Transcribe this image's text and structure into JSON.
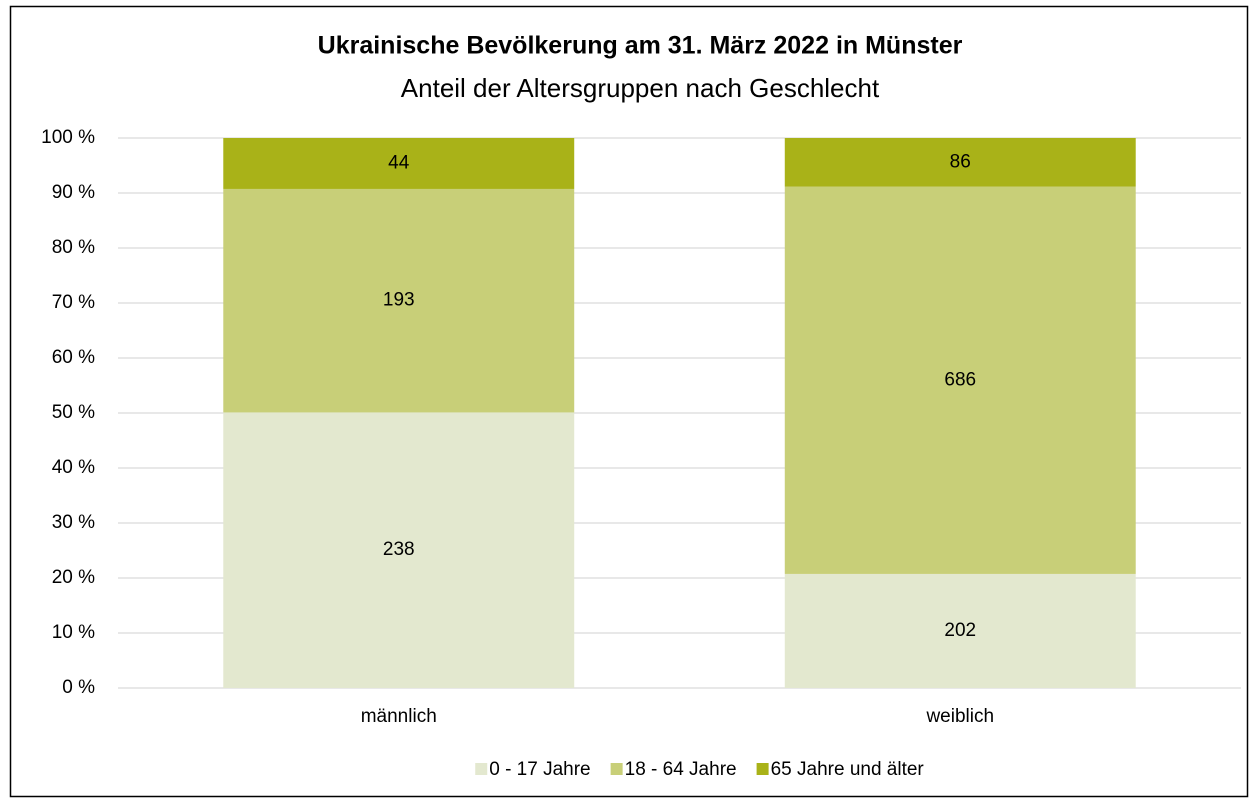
{
  "chart_data": {
    "type": "stacked_percent",
    "title": "Ukrainische Bevölkerung am 31. März 2022 in Münster",
    "subtitle": "Anteil der Altersgruppen nach Geschlecht",
    "categories": [
      "männlich",
      "weiblich"
    ],
    "series": [
      {
        "name": "0 - 17 Jahre",
        "color": "#e3e8cf",
        "values": [
          238,
          202
        ]
      },
      {
        "name": "18 - 64 Jahre",
        "color": "#c8cf78",
        "values": [
          193,
          686
        ]
      },
      {
        "name": "65 Jahre und älter",
        "color": "#a9b218",
        "values": [
          44,
          86
        ]
      }
    ],
    "ylim": [
      0,
      100
    ],
    "yticks": [
      {
        "value": 0,
        "label": "0 %"
      },
      {
        "value": 10,
        "label": "10 %"
      },
      {
        "value": 20,
        "label": "20 %"
      },
      {
        "value": 30,
        "label": "30 %"
      },
      {
        "value": 40,
        "label": "40 %"
      },
      {
        "value": 50,
        "label": "50 %"
      },
      {
        "value": 60,
        "label": "60 %"
      },
      {
        "value": 70,
        "label": "70 %"
      },
      {
        "value": 80,
        "label": "80 %"
      },
      {
        "value": 90,
        "label": "90 %"
      },
      {
        "value": 100,
        "label": "100 %"
      }
    ],
    "grid": true,
    "legend": "bottom"
  }
}
